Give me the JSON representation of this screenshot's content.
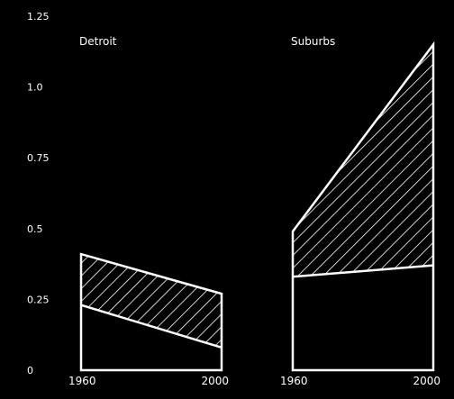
{
  "chart_data": {
    "type": "area",
    "ylim": [
      0,
      1.25
    ],
    "yticks": [
      "0",
      "0.25",
      "0.5",
      "0.75",
      "1.0",
      "1.25"
    ],
    "ytick_values": [
      0,
      0.25,
      0.5,
      0.75,
      1.0,
      1.25
    ],
    "grid": false,
    "legend": "none",
    "panels": [
      {
        "title": "Detroit",
        "x": [
          "1960",
          "2000"
        ],
        "series": [
          {
            "values": [
              0.23,
              0.08
            ]
          },
          {
            "values": [
              0.41,
              0.27
            ]
          }
        ]
      },
      {
        "title": "Suburbs",
        "x": [
          "1960",
          "2000"
        ],
        "series": [
          {
            "values": [
              0.33,
              0.37
            ]
          },
          {
            "values": [
              0.49,
              1.15
            ]
          }
        ]
      }
    ],
    "colors": {
      "background": "#000000",
      "line": "#ffffff",
      "hatch": "#ffffff"
    }
  }
}
